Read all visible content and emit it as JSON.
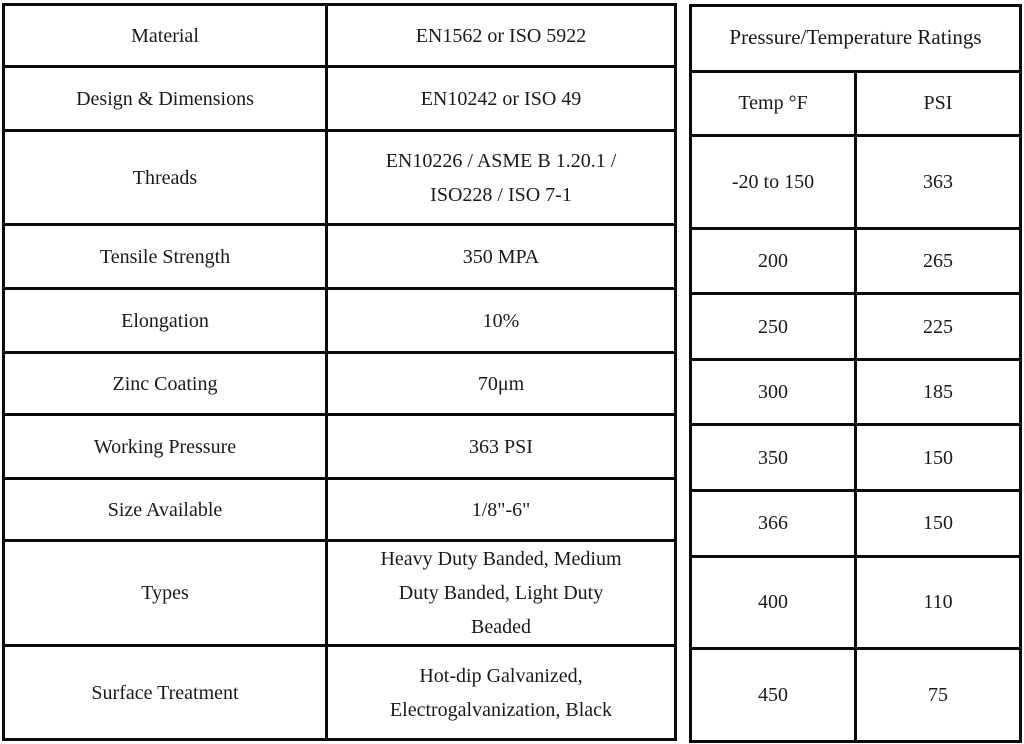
{
  "page": {
    "background_color": "#ffffff",
    "border_color": "#0a0a0a",
    "text_color": "#1a1a1a"
  },
  "spec_table": {
    "rows": [
      {
        "label": "Material",
        "value": "EN1562 or ISO 5922"
      },
      {
        "label": "Design & Dimensions",
        "value": "EN10242 or ISO 49"
      },
      {
        "label": "Threads",
        "value": "EN10226 / ASME B 1.20.1 / ISO228 / ISO 7-1"
      },
      {
        "label": "Tensile Strength",
        "value": "350 MPA"
      },
      {
        "label": "Elongation",
        "value": "10%"
      },
      {
        "label": "Zinc Coating",
        "value": "70μm"
      },
      {
        "label": "Working Pressure",
        "value": "363 PSI"
      },
      {
        "label": "Size Available",
        "value": "1/8\"-6\""
      },
      {
        "label": "Types",
        "value": "Heavy Duty Banded, Medium Duty Banded, Light Duty Beaded"
      },
      {
        "label": "Surface Treatment",
        "value": "Hot-dip Galvanized, Electrogalvanization, Black"
      }
    ]
  },
  "ratings_table": {
    "title": "Pressure/Temperature Ratings",
    "columns": {
      "temp": "Temp °F",
      "psi": "PSI"
    },
    "rows": [
      {
        "temp": "-20 to 150",
        "psi": "363"
      },
      {
        "temp": "200",
        "psi": "265"
      },
      {
        "temp": "250",
        "psi": "225"
      },
      {
        "temp": "300",
        "psi": "185"
      },
      {
        "temp": "350",
        "psi": "150"
      },
      {
        "temp": "366",
        "psi": "150"
      },
      {
        "temp": "400",
        "psi": "110"
      },
      {
        "temp": "450",
        "psi": "75"
      }
    ]
  }
}
